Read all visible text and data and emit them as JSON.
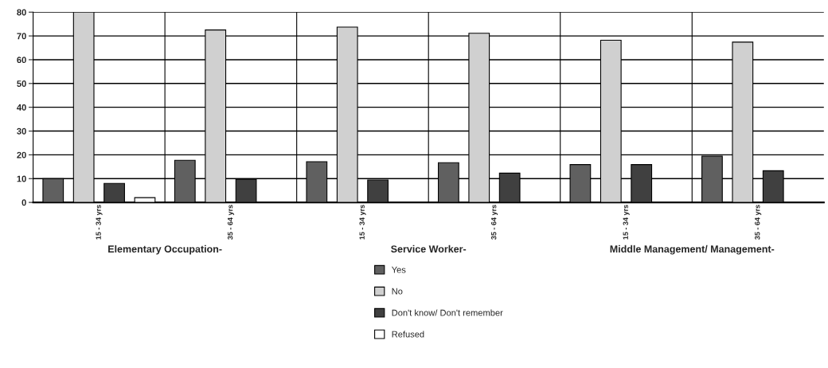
{
  "chart_data": {
    "type": "bar",
    "categories": [
      "15 - 34 yrs",
      "35 - 64 yrs",
      "15 - 34 yrs",
      "35 - 64 yrs",
      "15 - 34 yrs",
      "35 - 64 yrs"
    ],
    "series": [
      {
        "name": "Yes",
        "color": "#606060",
        "values": [
          10,
          17.7,
          17.1,
          16.7,
          15.9,
          19.4
        ]
      },
      {
        "name": "No",
        "color": "#d0d0d0",
        "values": [
          80,
          72.5,
          73.7,
          71.1,
          68.2,
          67.4
        ]
      },
      {
        "name": "Don't know/ Don't remember",
        "color": "#404040",
        "values": [
          8,
          9.7,
          9.4,
          12.3,
          15.9,
          13.3
        ]
      },
      {
        "name": "Refused",
        "color": "#ffffff",
        "values": [
          2,
          null,
          null,
          null,
          null,
          null
        ]
      }
    ],
    "annotations": [
      "Elementary Occupation-",
      "Service Worker-",
      "Middle Management/ Management-"
    ],
    "ylim": [
      0,
      80
    ],
    "yticks": [
      0,
      10,
      20,
      30,
      40,
      50,
      60,
      70,
      80
    ],
    "grid": true,
    "legend": "bottom"
  }
}
